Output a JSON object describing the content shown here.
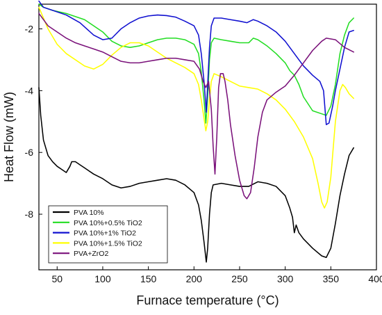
{
  "chart_data": {
    "type": "line",
    "xlabel": "Furnace temperature (°C)",
    "ylabel": "Heat Flow (mW)",
    "xlim": [
      30,
      400
    ],
    "ylim": [
      -9.8,
      -1.2
    ],
    "x_ticks": [
      50,
      100,
      150,
      200,
      250,
      300,
      350,
      400
    ],
    "y_ticks": [
      -2,
      -4,
      -6,
      -8
    ],
    "grid": false,
    "legend_position": "bottom-left",
    "series": [
      {
        "name": "PVA 10%",
        "color": "#000000",
        "points": [
          [
            30,
            -3.9
          ],
          [
            32,
            -4.8
          ],
          [
            35,
            -5.6
          ],
          [
            40,
            -6.1
          ],
          [
            45,
            -6.3
          ],
          [
            50,
            -6.45
          ],
          [
            55,
            -6.55
          ],
          [
            60,
            -6.65
          ],
          [
            64,
            -6.45
          ],
          [
            66,
            -6.3
          ],
          [
            70,
            -6.3
          ],
          [
            75,
            -6.4
          ],
          [
            80,
            -6.5
          ],
          [
            90,
            -6.7
          ],
          [
            100,
            -6.85
          ],
          [
            110,
            -7.05
          ],
          [
            120,
            -7.15
          ],
          [
            130,
            -7.1
          ],
          [
            140,
            -7.0
          ],
          [
            150,
            -6.95
          ],
          [
            160,
            -6.9
          ],
          [
            170,
            -6.85
          ],
          [
            180,
            -6.9
          ],
          [
            190,
            -7.05
          ],
          [
            200,
            -7.3
          ],
          [
            205,
            -7.7
          ],
          [
            208,
            -8.2
          ],
          [
            211,
            -8.9
          ],
          [
            213.5,
            -9.55
          ],
          [
            215,
            -9.1
          ],
          [
            217,
            -8.0
          ],
          [
            219,
            -7.3
          ],
          [
            221,
            -7.05
          ],
          [
            230,
            -7.0
          ],
          [
            240,
            -7.05
          ],
          [
            250,
            -7.1
          ],
          [
            260,
            -7.1
          ],
          [
            270,
            -6.95
          ],
          [
            280,
            -7.0
          ],
          [
            290,
            -7.1
          ],
          [
            300,
            -7.4
          ],
          [
            305,
            -7.8
          ],
          [
            308,
            -8.1
          ],
          [
            310,
            -8.6
          ],
          [
            312,
            -8.35
          ],
          [
            315,
            -8.6
          ],
          [
            320,
            -8.8
          ],
          [
            330,
            -9.1
          ],
          [
            340,
            -9.35
          ],
          [
            345,
            -9.4
          ],
          [
            350,
            -9.1
          ],
          [
            355,
            -8.3
          ],
          [
            360,
            -7.4
          ],
          [
            365,
            -6.7
          ],
          [
            370,
            -6.1
          ],
          [
            375,
            -5.85
          ]
        ]
      },
      {
        "name": "PVA 10%+0.5% TiO2",
        "color": "#22dd22",
        "points": [
          [
            30,
            -1.2
          ],
          [
            35,
            -1.3
          ],
          [
            45,
            -1.4
          ],
          [
            60,
            -1.5
          ],
          [
            80,
            -1.7
          ],
          [
            100,
            -2.1
          ],
          [
            110,
            -2.4
          ],
          [
            120,
            -2.55
          ],
          [
            130,
            -2.6
          ],
          [
            140,
            -2.55
          ],
          [
            150,
            -2.45
          ],
          [
            160,
            -2.35
          ],
          [
            170,
            -2.3
          ],
          [
            180,
            -2.3
          ],
          [
            190,
            -2.35
          ],
          [
            200,
            -2.5
          ],
          [
            205,
            -2.8
          ],
          [
            208,
            -3.4
          ],
          [
            211,
            -4.3
          ],
          [
            213,
            -5.05
          ],
          [
            215,
            -4.2
          ],
          [
            217,
            -3.0
          ],
          [
            219,
            -2.45
          ],
          [
            222,
            -2.3
          ],
          [
            230,
            -2.35
          ],
          [
            240,
            -2.4
          ],
          [
            250,
            -2.45
          ],
          [
            260,
            -2.45
          ],
          [
            265,
            -2.3
          ],
          [
            270,
            -2.35
          ],
          [
            280,
            -2.55
          ],
          [
            290,
            -2.8
          ],
          [
            300,
            -3.1
          ],
          [
            305,
            -3.35
          ],
          [
            310,
            -3.5
          ],
          [
            315,
            -3.8
          ],
          [
            320,
            -4.2
          ],
          [
            330,
            -4.65
          ],
          [
            340,
            -4.75
          ],
          [
            345,
            -4.8
          ],
          [
            350,
            -4.5
          ],
          [
            355,
            -3.8
          ],
          [
            360,
            -2.8
          ],
          [
            365,
            -2.2
          ],
          [
            370,
            -1.8
          ],
          [
            375,
            -1.65
          ]
        ]
      },
      {
        "name": "PVA 10%+1% TiO2",
        "color": "#1010d0",
        "points": [
          [
            30,
            -1.1
          ],
          [
            35,
            -1.3
          ],
          [
            45,
            -1.4
          ],
          [
            60,
            -1.55
          ],
          [
            75,
            -1.8
          ],
          [
            90,
            -2.2
          ],
          [
            100,
            -2.35
          ],
          [
            110,
            -2.3
          ],
          [
            120,
            -2.0
          ],
          [
            130,
            -1.8
          ],
          [
            140,
            -1.65
          ],
          [
            150,
            -1.58
          ],
          [
            160,
            -1.55
          ],
          [
            170,
            -1.57
          ],
          [
            180,
            -1.62
          ],
          [
            190,
            -1.75
          ],
          [
            200,
            -1.9
          ],
          [
            205,
            -2.2
          ],
          [
            208,
            -2.8
          ],
          [
            211,
            -3.7
          ],
          [
            213.5,
            -4.7
          ],
          [
            215,
            -3.8
          ],
          [
            217,
            -2.6
          ],
          [
            219,
            -1.9
          ],
          [
            222,
            -1.65
          ],
          [
            230,
            -1.65
          ],
          [
            240,
            -1.7
          ],
          [
            250,
            -1.75
          ],
          [
            258,
            -1.8
          ],
          [
            265,
            -1.7
          ],
          [
            270,
            -1.75
          ],
          [
            280,
            -1.9
          ],
          [
            290,
            -2.1
          ],
          [
            300,
            -2.4
          ],
          [
            310,
            -2.8
          ],
          [
            320,
            -3.2
          ],
          [
            330,
            -3.5
          ],
          [
            338,
            -3.7
          ],
          [
            342,
            -4.0
          ],
          [
            345,
            -5.1
          ],
          [
            348,
            -5.05
          ],
          [
            352,
            -4.5
          ],
          [
            355,
            -4.0
          ],
          [
            360,
            -3.3
          ],
          [
            365,
            -2.6
          ],
          [
            370,
            -2.1
          ],
          [
            375,
            -2.05
          ]
        ]
      },
      {
        "name": "PVA 10%+1.5% TiO2",
        "color": "#ffff00",
        "points": [
          [
            30,
            -1.3
          ],
          [
            40,
            -2.0
          ],
          [
            50,
            -2.5
          ],
          [
            60,
            -2.8
          ],
          [
            70,
            -3.0
          ],
          [
            80,
            -3.2
          ],
          [
            90,
            -3.3
          ],
          [
            100,
            -3.15
          ],
          [
            110,
            -2.85
          ],
          [
            120,
            -2.6
          ],
          [
            130,
            -2.45
          ],
          [
            140,
            -2.45
          ],
          [
            150,
            -2.55
          ],
          [
            160,
            -2.75
          ],
          [
            170,
            -2.95
          ],
          [
            180,
            -3.1
          ],
          [
            190,
            -3.25
          ],
          [
            200,
            -3.45
          ],
          [
            205,
            -3.8
          ],
          [
            208,
            -4.3
          ],
          [
            211,
            -4.9
          ],
          [
            213,
            -5.3
          ],
          [
            215,
            -5.0
          ],
          [
            217,
            -4.3
          ],
          [
            219,
            -3.7
          ],
          [
            222,
            -3.45
          ],
          [
            230,
            -3.55
          ],
          [
            240,
            -3.7
          ],
          [
            250,
            -3.85
          ],
          [
            260,
            -3.9
          ],
          [
            270,
            -3.95
          ],
          [
            280,
            -4.1
          ],
          [
            290,
            -4.3
          ],
          [
            300,
            -4.6
          ],
          [
            310,
            -5.0
          ],
          [
            320,
            -5.5
          ],
          [
            330,
            -6.2
          ],
          [
            336,
            -7.0
          ],
          [
            340,
            -7.6
          ],
          [
            343,
            -7.8
          ],
          [
            346,
            -7.6
          ],
          [
            350,
            -6.8
          ],
          [
            355,
            -5.0
          ],
          [
            360,
            -4.0
          ],
          [
            363,
            -3.8
          ],
          [
            366,
            -3.9
          ],
          [
            370,
            -4.1
          ],
          [
            375,
            -4.25
          ]
        ]
      },
      {
        "name": "PVA+ZrO2",
        "color": "#7a117a",
        "points": [
          [
            30,
            -1.5
          ],
          [
            40,
            -1.9
          ],
          [
            50,
            -2.1
          ],
          [
            60,
            -2.3
          ],
          [
            70,
            -2.45
          ],
          [
            80,
            -2.55
          ],
          [
            90,
            -2.65
          ],
          [
            100,
            -2.75
          ],
          [
            110,
            -2.9
          ],
          [
            120,
            -3.05
          ],
          [
            130,
            -3.1
          ],
          [
            140,
            -3.1
          ],
          [
            150,
            -3.05
          ],
          [
            160,
            -3.0
          ],
          [
            170,
            -2.95
          ],
          [
            180,
            -2.95
          ],
          [
            190,
            -3.0
          ],
          [
            200,
            -3.05
          ],
          [
            206,
            -3.3
          ],
          [
            210,
            -3.7
          ],
          [
            213,
            -3.9
          ],
          [
            216,
            -3.7
          ],
          [
            219,
            -4.6
          ],
          [
            221,
            -5.8
          ],
          [
            223,
            -6.7
          ],
          [
            225,
            -5.5
          ],
          [
            227,
            -3.9
          ],
          [
            229,
            -3.45
          ],
          [
            232,
            -3.45
          ],
          [
            234,
            -3.7
          ],
          [
            237,
            -4.3
          ],
          [
            240,
            -5.1
          ],
          [
            245,
            -6.1
          ],
          [
            250,
            -6.9
          ],
          [
            255,
            -7.4
          ],
          [
            258,
            -7.5
          ],
          [
            262,
            -7.3
          ],
          [
            266,
            -6.5
          ],
          [
            270,
            -5.5
          ],
          [
            275,
            -4.7
          ],
          [
            280,
            -4.3
          ],
          [
            290,
            -4.05
          ],
          [
            300,
            -3.85
          ],
          [
            310,
            -3.5
          ],
          [
            320,
            -3.1
          ],
          [
            330,
            -2.7
          ],
          [
            340,
            -2.4
          ],
          [
            345,
            -2.3
          ],
          [
            355,
            -2.35
          ],
          [
            365,
            -2.6
          ],
          [
            375,
            -2.75
          ]
        ]
      }
    ]
  }
}
